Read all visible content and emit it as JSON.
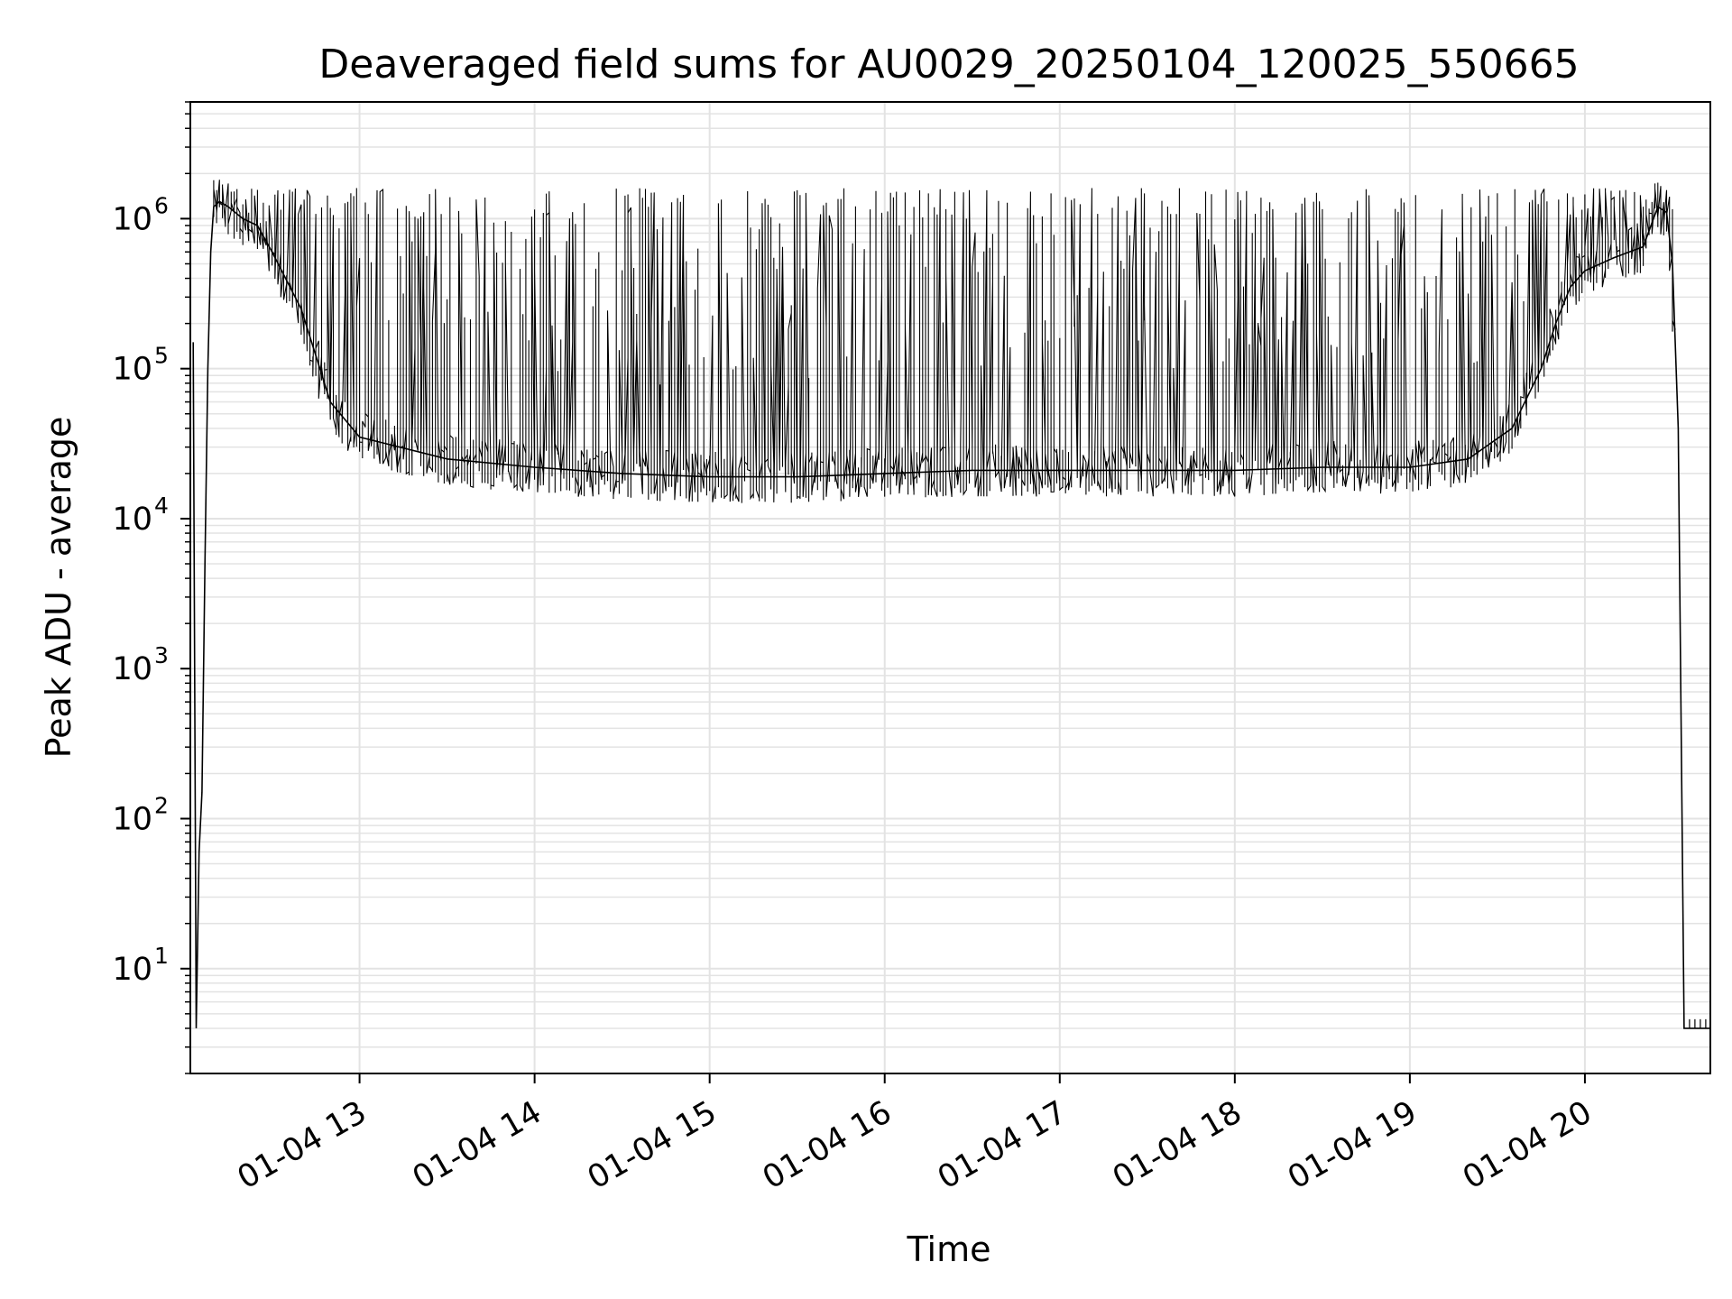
{
  "chart_data": {
    "type": "line",
    "title": "Deaveraged field sums for AU0029_20250104_120025_550665",
    "xlabel": "Time",
    "ylabel": "Peak ADU - average",
    "y_scale": "log",
    "ylim": [
      2,
      6000000
    ],
    "xlim": [
      "2025-01-04 12:02",
      "2025-01-04 20:43"
    ],
    "grid": true,
    "line_color": "#000000",
    "grid_color": "#e3e3e3",
    "x_ticks": [
      {
        "value": "2025-01-04 13:00",
        "label": "01-04 13"
      },
      {
        "value": "2025-01-04 14:00",
        "label": "01-04 14"
      },
      {
        "value": "2025-01-04 15:00",
        "label": "01-04 15"
      },
      {
        "value": "2025-01-04 16:00",
        "label": "01-04 16"
      },
      {
        "value": "2025-01-04 17:00",
        "label": "01-04 17"
      },
      {
        "value": "2025-01-04 18:00",
        "label": "01-04 18"
      },
      {
        "value": "2025-01-04 19:00",
        "label": "01-04 19"
      },
      {
        "value": "2025-01-04 20:00",
        "label": "01-04 20"
      }
    ],
    "y_ticks": [
      {
        "value": 10,
        "base": "10",
        "exp": "1"
      },
      {
        "value": 100,
        "base": "10",
        "exp": "2"
      },
      {
        "value": 1000,
        "base": "10",
        "exp": "3"
      },
      {
        "value": 10000,
        "base": "10",
        "exp": "4"
      },
      {
        "value": 100000,
        "base": "10",
        "exp": "5"
      },
      {
        "value": 1000000,
        "base": "10",
        "exp": "6"
      }
    ],
    "series": [
      {
        "x": [
          "2025-01-04 12:03",
          "2025-01-04 12:04",
          "2025-01-04 12:05",
          "2025-01-04 12:06",
          "2025-01-04 12:07",
          "2025-01-04 12:08",
          "2025-01-04 12:09",
          "2025-01-04 12:10",
          "2025-01-04 12:12",
          "2025-01-04 12:15",
          "2025-01-04 12:20",
          "2025-01-04 12:25",
          "2025-01-04 12:30",
          "2025-01-04 12:40",
          "2025-01-04 12:50",
          "2025-01-04 13:00",
          "2025-01-04 13:30",
          "2025-01-04 14:00",
          "2025-01-04 14:30",
          "2025-01-04 15:00",
          "2025-01-04 15:30",
          "2025-01-04 16:00",
          "2025-01-04 16:30",
          "2025-01-04 17:00",
          "2025-01-04 17:30",
          "2025-01-04 18:00",
          "2025-01-04 18:30",
          "2025-01-04 19:00",
          "2025-01-04 19:20",
          "2025-01-04 19:35",
          "2025-01-04 19:45",
          "2025-01-04 19:50",
          "2025-01-04 19:55",
          "2025-01-04 20:00",
          "2025-01-04 20:10",
          "2025-01-04 20:20",
          "2025-01-04 20:25",
          "2025-01-04 20:28",
          "2025-01-04 20:30",
          "2025-01-04 20:32",
          "2025-01-04 20:34",
          "2025-01-04 20:36",
          "2025-01-04 20:38",
          "2025-01-04 20:40",
          "2025-01-04 20:43"
        ],
        "y": [
          150000,
          4,
          60,
          150,
          5000,
          100000,
          600000,
          1200000,
          1300000,
          1200000,
          1000000,
          900000,
          600000,
          250000,
          60000,
          35000,
          25000,
          22000,
          20000,
          19000,
          19000,
          20000,
          21000,
          21000,
          21000,
          21000,
          22000,
          22000,
          25000,
          40000,
          100000,
          200000,
          350000,
          450000,
          550000,
          650000,
          1200000,
          1100000,
          500000,
          40000,
          4,
          4,
          4,
          4,
          4
        ]
      }
    ]
  }
}
